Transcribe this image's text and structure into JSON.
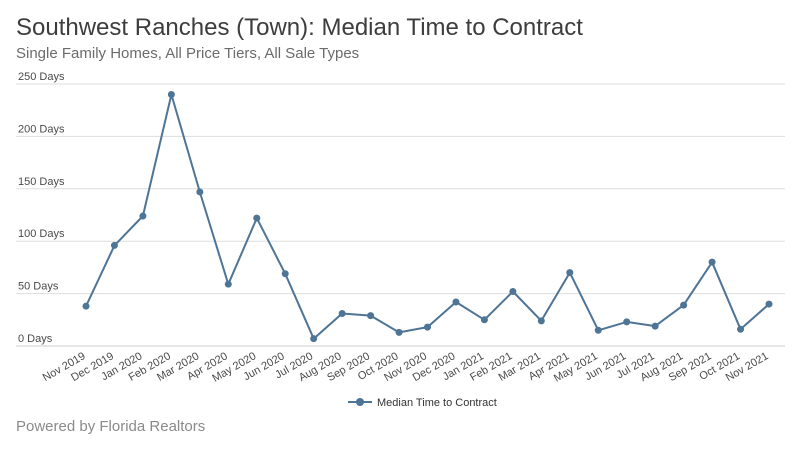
{
  "title": "Southwest Ranches (Town): Median Time to Contract",
  "subtitle": "Single Family Homes, All Price Tiers, All Sale Types",
  "footer": "Powered by Florida Realtors",
  "colors": {
    "series": "#4e7496",
    "grid": "#dddddd",
    "axis": "#cccccc"
  },
  "chart_data": {
    "type": "line",
    "title": "Southwest Ranches (Town): Median Time to Contract",
    "subtitle": "Single Family Homes, All Price Tiers, All Sale Types",
    "xlabel": "",
    "ylabel": "",
    "ylim": [
      0,
      250
    ],
    "yticks": [
      0,
      50,
      100,
      150,
      200,
      250
    ],
    "ytick_labels": [
      "0 Days",
      "50 Days",
      "100 Days",
      "150 Days",
      "200 Days",
      "250 Days"
    ],
    "grid": true,
    "legend_position": "bottom-center",
    "categories": [
      "Nov 2019",
      "Dec 2019",
      "Jan 2020",
      "Feb 2020",
      "Mar 2020",
      "Apr 2020",
      "May 2020",
      "Jun 2020",
      "Jul 2020",
      "Aug 2020",
      "Sep 2020",
      "Oct 2020",
      "Nov 2020",
      "Dec 2020",
      "Jan 2021",
      "Feb 2021",
      "Mar 2021",
      "Apr 2021",
      "May 2021",
      "Jun 2021",
      "Jul 2021",
      "Aug 2021",
      "Sep 2021",
      "Oct 2021",
      "Nov 2021"
    ],
    "series": [
      {
        "name": "Median Time to Contract",
        "values": [
          38,
          96,
          124,
          240,
          147,
          59,
          122,
          69,
          7,
          31,
          29,
          13,
          18,
          42,
          25,
          52,
          24,
          70,
          15,
          23,
          19,
          39,
          80,
          16,
          40
        ]
      }
    ]
  }
}
